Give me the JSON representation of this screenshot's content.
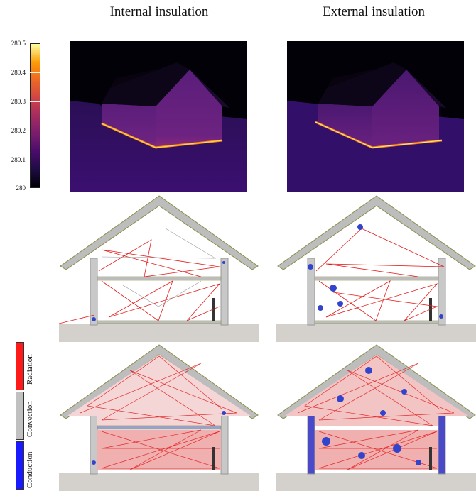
{
  "columns": {
    "internal": "Internal insulation",
    "external": "External insulation"
  },
  "colorbar": {
    "ticks": [
      "280.5",
      "280.4",
      "280.3",
      "280.2",
      "280.1",
      "280"
    ],
    "colormap": "inferno"
  },
  "legend": {
    "items": [
      {
        "label": "Radiation",
        "color": "#ff1a1a"
      },
      {
        "label": "Convection",
        "color": "#c0c0c0"
      },
      {
        "label": "Conduction",
        "color": "#1a1aff"
      }
    ]
  }
}
